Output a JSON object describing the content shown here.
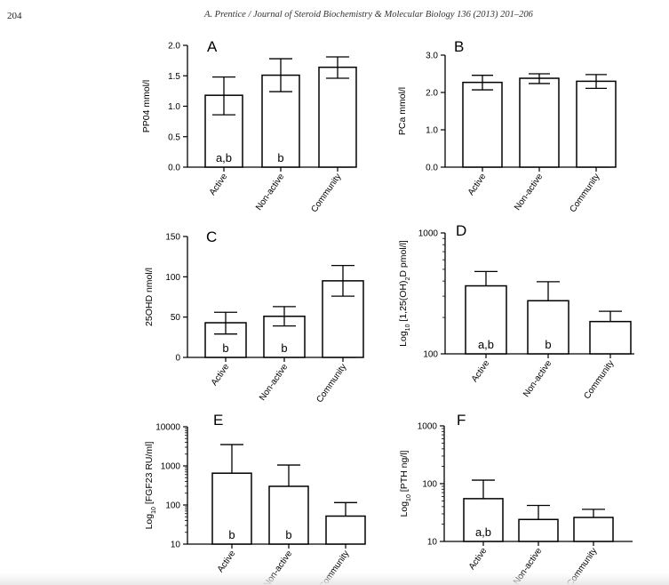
{
  "header": {
    "page_number": "204",
    "running_title": "A. Prentice / Journal of Steroid Biochemistry & Molecular Biology 136 (2013) 201–206"
  },
  "chart_data": [
    {
      "panel": "A",
      "type": "bar",
      "scale": "linear",
      "ylabel": "PP04 mmol/l",
      "ylim": [
        0,
        2.0
      ],
      "yticks": [
        0.0,
        0.5,
        1.0,
        1.5,
        2.0
      ],
      "ytick_labels": [
        "0.0",
        "0.5",
        "1.0",
        "1.5",
        "2.0"
      ],
      "categories": [
        "Active",
        "Non-active",
        "Community"
      ],
      "values": [
        1.18,
        1.51,
        1.64
      ],
      "err_low": [
        0.86,
        1.24,
        1.46
      ],
      "err_high": [
        1.48,
        1.78,
        1.81
      ],
      "annotations": [
        "a,b",
        "b",
        ""
      ]
    },
    {
      "panel": "B",
      "type": "bar",
      "scale": "linear",
      "ylabel": "PCa mmol/l",
      "ylim": [
        0,
        3.0
      ],
      "yticks": [
        0.0,
        1.0,
        2.0,
        3.0
      ],
      "ytick_labels": [
        "0.0",
        "1.0",
        "2.0",
        "3.0"
      ],
      "categories": [
        "Active",
        "Non-active",
        "Community"
      ],
      "values": [
        2.27,
        2.38,
        2.3
      ],
      "err_low": [
        2.07,
        2.24,
        2.11
      ],
      "err_high": [
        2.46,
        2.5,
        2.48
      ],
      "annotations": [
        "",
        "",
        ""
      ]
    },
    {
      "panel": "C",
      "type": "bar",
      "scale": "linear",
      "ylabel": "25OHD nmol/l",
      "ylim": [
        0,
        150
      ],
      "yticks": [
        0,
        50,
        100,
        150
      ],
      "ytick_labels": [
        "0",
        "50",
        "100",
        "150"
      ],
      "categories": [
        "Active",
        "Non-active",
        "Community"
      ],
      "values": [
        43,
        51,
        95
      ],
      "err_low": [
        29,
        39,
        76
      ],
      "err_high": [
        56,
        63,
        114
      ],
      "annotations": [
        "b",
        "b",
        ""
      ]
    },
    {
      "panel": "D",
      "type": "bar",
      "scale": "log",
      "ylabel_pre": "Log",
      "ylabel_sub": "10",
      "ylabel_post": " [1,25(OH)",
      "ylabel_sub2": "2",
      "ylabel_post2": "D pmol/l]",
      "ylim": [
        100,
        1000
      ],
      "yticks": [
        100,
        1000
      ],
      "ytick_labels": [
        "100",
        "1000"
      ],
      "categories": [
        "Active",
        "Non-active",
        "Community"
      ],
      "values": [
        365,
        275,
        185
      ],
      "err_low": [
        365,
        275,
        185
      ],
      "err_high": [
        480,
        395,
        225
      ],
      "annotations": [
        "a,b",
        "b",
        ""
      ]
    },
    {
      "panel": "E",
      "type": "bar",
      "scale": "log",
      "ylabel_pre": "Log",
      "ylabel_sub": "10",
      "ylabel_post": " [FGF23 RU/ml]",
      "ylabel_sub2": "",
      "ylabel_post2": "",
      "ylim": [
        10,
        10000
      ],
      "yticks": [
        10,
        100,
        1000,
        10000
      ],
      "ytick_labels": [
        "10",
        "100",
        "1000",
        "10000"
      ],
      "categories": [
        "Active",
        "Non-active",
        "Community"
      ],
      "values": [
        650,
        300,
        52
      ],
      "err_low": [
        650,
        300,
        52
      ],
      "err_high": [
        3500,
        1050,
        115
      ],
      "annotations": [
        "b",
        "b",
        ""
      ]
    },
    {
      "panel": "F",
      "type": "bar",
      "scale": "log",
      "ylabel_pre": "Log",
      "ylabel_sub": "10",
      "ylabel_post": " [PTH ng/l]",
      "ylabel_sub2": "",
      "ylabel_post2": "",
      "ylim": [
        10,
        1000
      ],
      "yticks": [
        10,
        100,
        1000
      ],
      "ytick_labels": [
        "10",
        "100",
        "1000"
      ],
      "categories": [
        "Active",
        "Non-active",
        "Community"
      ],
      "values": [
        55,
        24,
        26
      ],
      "err_low": [
        55,
        24,
        26
      ],
      "err_high": [
        115,
        42,
        36
      ],
      "annotations": [
        "a,b",
        "",
        ""
      ]
    }
  ]
}
